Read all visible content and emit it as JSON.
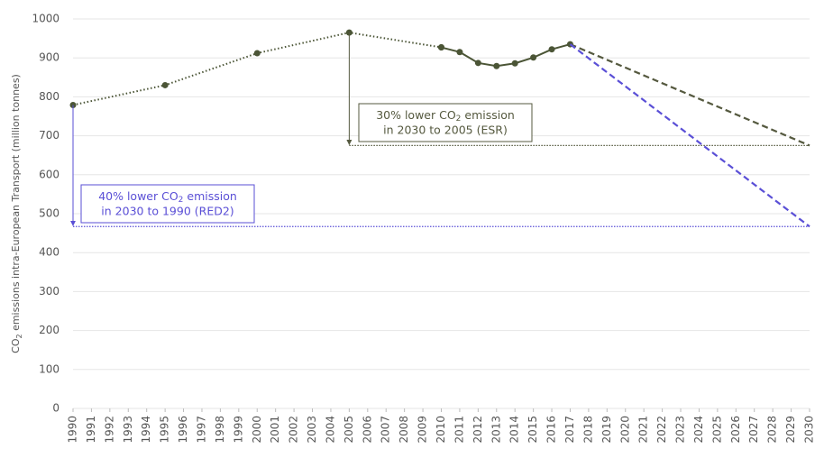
{
  "chart_data": {
    "type": "line",
    "ylabel": {
      "before": "CO",
      "sub": "2",
      "after": " emissions intra-European Transport (million tonnes)"
    },
    "xlim": [
      1990,
      2030
    ],
    "xticks": [
      1990,
      1991,
      1992,
      1993,
      1994,
      1995,
      1996,
      1997,
      1998,
      1999,
      2000,
      2001,
      2002,
      2003,
      2004,
      2005,
      2006,
      2007,
      2008,
      2009,
      2010,
      2011,
      2012,
      2013,
      2014,
      2015,
      2016,
      2017,
      2018,
      2019,
      2020,
      2021,
      2022,
      2023,
      2024,
      2025,
      2026,
      2027,
      2028,
      2029,
      2030
    ],
    "ylim": [
      0,
      1000
    ],
    "yticks": [
      0,
      100,
      200,
      300,
      400,
      500,
      600,
      700,
      800,
      900,
      1000
    ],
    "grid": true,
    "series": [
      {
        "color": "#4b5536",
        "dash": "dotted",
        "markers": true,
        "x": [
          1990,
          1995,
          2000,
          2005,
          2010
        ],
        "values": [
          779,
          830,
          912,
          965,
          927
        ]
      },
      {
        "color": "#4b5536",
        "dash": "solid",
        "markers": true,
        "x": [
          2010,
          2011,
          2012,
          2013,
          2014,
          2015,
          2016,
          2017
        ],
        "values": [
          927,
          915,
          887,
          879,
          886,
          901,
          922,
          935
        ]
      },
      {
        "color": "#55593f",
        "dash": "dashed",
        "markers": false,
        "x": [
          2017,
          2030
        ],
        "values": [
          935,
          675
        ]
      },
      {
        "color": "#5a4fd6",
        "dash": "dashed",
        "markers": false,
        "x": [
          2017,
          2030
        ],
        "values": [
          935,
          467
        ]
      }
    ],
    "reference_lines": [
      {
        "color": "#55593f",
        "y": 675,
        "x": [
          2005,
          2030
        ]
      },
      {
        "color": "#5a4fd6",
        "y": 467,
        "x": [
          1990,
          2030
        ]
      }
    ],
    "annotations": [
      {
        "color": "#55593f",
        "x": 2005,
        "from": 965,
        "to": 675,
        "before": "30% lower CO",
        "sub": "2",
        "after": " emission",
        "line2": "in 2030 to 2005 (ESR)"
      },
      {
        "color": "#5a4fd6",
        "x": 1990,
        "from": 779,
        "to": 467,
        "before": "40% lower CO",
        "sub": "2",
        "after": " emission",
        "line2": "in 2030 to 1990 (RED2)"
      }
    ]
  }
}
